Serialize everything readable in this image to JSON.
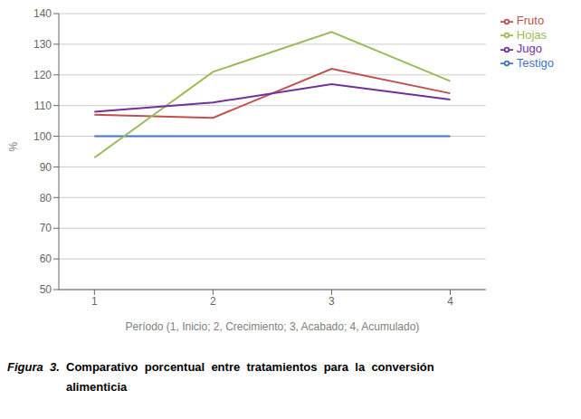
{
  "chart_data": {
    "type": "line",
    "x": [
      1,
      2,
      3,
      4
    ],
    "series": [
      {
        "name": "Testigo",
        "color": "#4472C4",
        "values": [
          100,
          100,
          100,
          100
        ]
      },
      {
        "name": "Fruto",
        "color": "#C0504D",
        "values": [
          107,
          106,
          122,
          114
        ]
      },
      {
        "name": "Hojas",
        "color": "#9BBB59",
        "values": [
          93,
          121,
          134,
          118
        ]
      },
      {
        "name": "Jugo",
        "color": "#7030A0",
        "values": [
          108,
          111,
          117,
          112
        ]
      }
    ],
    "ylabel": "%",
    "xlabel": "Período (1, Inicio; 2, Crecimiento; 3, Acabado; 4, Acumulado)",
    "xlim": [
      0.7,
      4.3
    ],
    "xticks": [
      1,
      2,
      3,
      4
    ],
    "ylim": [
      50,
      140
    ],
    "yticks": [
      50,
      60,
      70,
      80,
      90,
      100,
      110,
      120,
      130,
      140
    ],
    "grid": true,
    "legend": "right",
    "annotations": [
      "Figura  3.",
      "  Comparativo  porcentual  entre  tratamientos  para  la  conversión",
      "  alimenticia"
    ]
  }
}
